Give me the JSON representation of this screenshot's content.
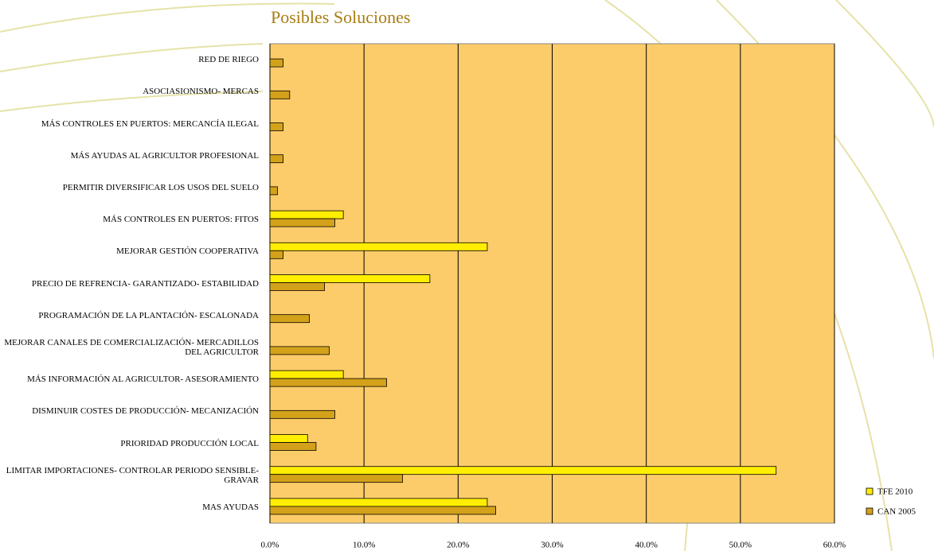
{
  "chart_data": {
    "type": "hbar",
    "title": "Posibles Soluciones",
    "categories": [
      "RED DE RIEGO",
      "ASOCIASIONISMO- MERCAS",
      "MÁS CONTROLES EN PUERTOS: MERCANCÍA ILEGAL",
      "MÁS AYUDAS AL AGRICULTOR PROFESIONAL",
      "PERMITIR DIVERSIFICAR LOS USOS DEL SUELO",
      "MÁS CONTROLES EN PUERTOS: FITOS",
      "MEJORAR GESTIÓN COOPERATIVA",
      "PRECIO DE REFRENCIA- GARANTIZADO- ESTABILIDAD",
      "PROGRAMACIÓN DE LA PLANTACIÓN- ESCALONADA",
      "MEJORAR CANALES DE COMERCIALIZACIÓN- MERCADILLOS DEL AGRICULTOR",
      "MÁS INFORMACIÓN AL AGRICULTOR- ASESORAMIENTO",
      "DISMINUIR COSTES DE PRODUCCIÓN- MECANIZACIÓN",
      "PRIORIDAD PRODUCCIÓN LOCAL",
      "LIMITAR IMPORTACIONES- CONTROLAR PERIODO SENSIBLE- GRAVAR",
      "MAS AYUDAS"
    ],
    "series": [
      {
        "name": "TFE 2010",
        "color": "#ffee00",
        "values": [
          null,
          null,
          null,
          null,
          null,
          7.8,
          23.1,
          17.0,
          null,
          null,
          7.8,
          null,
          4.0,
          53.8,
          23.1
        ]
      },
      {
        "name": "CAN 2005",
        "color": "#d4a21a",
        "values": [
          1.4,
          2.1,
          1.4,
          1.4,
          0.8,
          6.9,
          1.4,
          5.8,
          4.2,
          6.3,
          12.4,
          6.9,
          4.9,
          14.1,
          24.0
        ]
      }
    ],
    "xlim": [
      0,
      60
    ],
    "xticks": [
      {
        "value": 0,
        "label": "0.0%"
      },
      {
        "value": 10,
        "label": "10.0%"
      },
      {
        "value": 20,
        "label": "20.0%"
      },
      {
        "value": 30,
        "label": "30.0%"
      },
      {
        "value": 40,
        "label": "40.0%"
      },
      {
        "value": 50,
        "label": "50.0%"
      },
      {
        "value": 60,
        "label": "60.0%"
      }
    ],
    "grid": true,
    "legend": "lower right"
  }
}
